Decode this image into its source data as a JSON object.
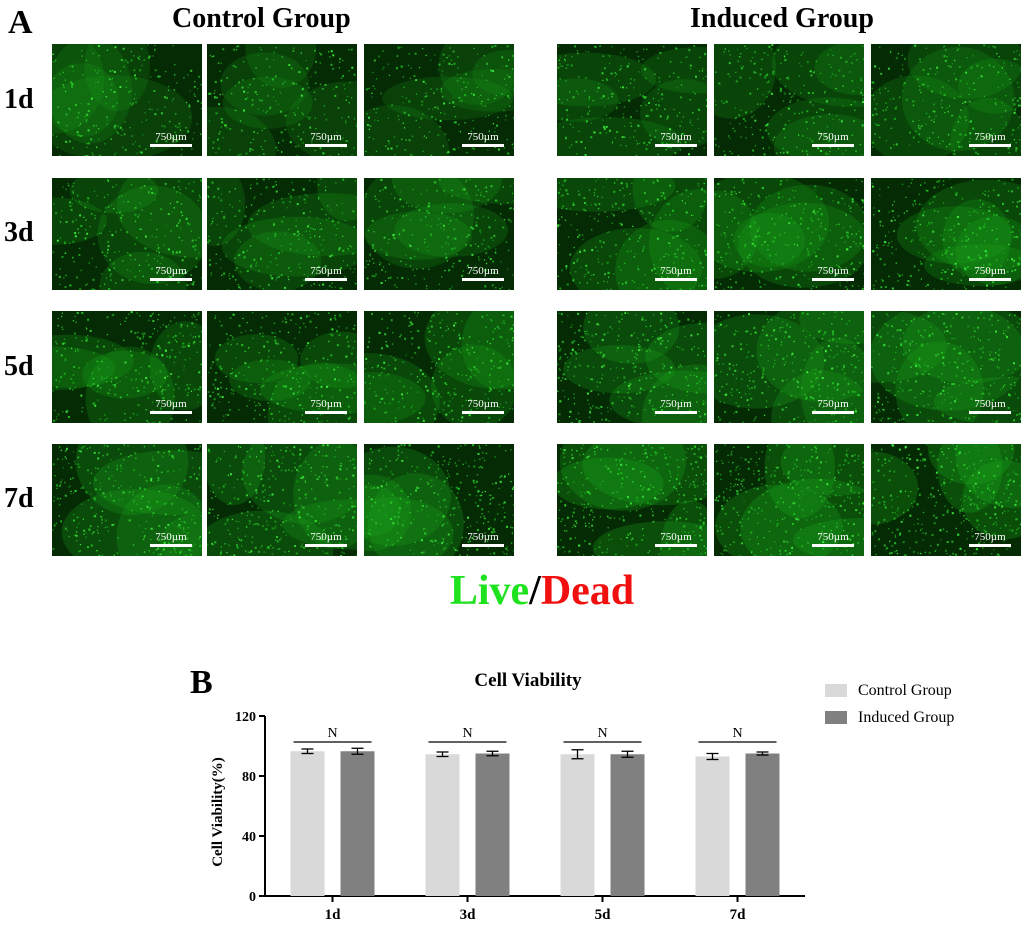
{
  "panel_a": {
    "letter": "A",
    "groups": [
      "Control Group",
      "Induced Group"
    ],
    "rows": [
      "1d",
      "3d",
      "5d",
      "7d"
    ],
    "scale_label": "750µm",
    "stain": {
      "live": "Live",
      "slash": "/",
      "dead": "Dead"
    },
    "colors": {
      "live": "#1fe21f",
      "dead": "#f01010",
      "tile_bg": "#052b05"
    }
  },
  "panel_b": {
    "letter": "B"
  },
  "chart_data": {
    "type": "bar",
    "title": "Cell Viability",
    "xlabel": "",
    "ylabel": "Cell Viability(%)",
    "ylim": [
      0,
      120
    ],
    "yticks": [
      0,
      40,
      80,
      120
    ],
    "categories": [
      "1d",
      "3d",
      "5d",
      "7d"
    ],
    "series": [
      {
        "name": "Control Group",
        "color": "#d9d9d9",
        "values": [
          96.5,
          94.5,
          94.5,
          93.0
        ],
        "errors": [
          1.5,
          1.5,
          3.0,
          2.0
        ]
      },
      {
        "name": "Induced Group",
        "color": "#808080",
        "values": [
          96.5,
          95.0,
          94.5,
          95.0
        ],
        "errors": [
          2.0,
          1.5,
          2.0,
          1.0
        ]
      }
    ],
    "significance": [
      "N",
      "N",
      "N",
      "N"
    ],
    "legend_position": "top-right",
    "grid": false
  }
}
